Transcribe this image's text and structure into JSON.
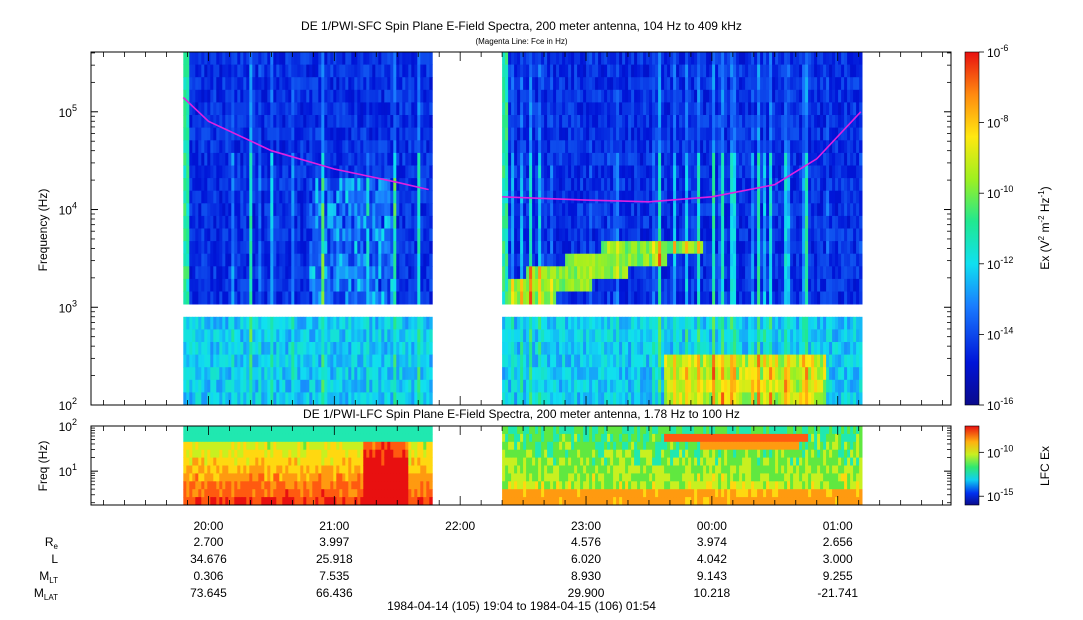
{
  "chart_data": [
    {
      "type": "heatmap",
      "title": "DE 1/PWI-SFC  Spin Plane E-Field Spectra, 200 meter antenna, 104 Hz to 409 kHz",
      "subtitle": "(Magenta Line: Fce in Hz)",
      "ylabel": "Frequency (Hz)",
      "yscale": "log",
      "ylim": [
        100,
        409000
      ],
      "yticks": [
        {
          "value": 100,
          "base": "10",
          "exp": "2"
        },
        {
          "value": 1000,
          "base": "10",
          "exp": "3"
        },
        {
          "value": 10000,
          "base": "10",
          "exp": "4"
        },
        {
          "value": 100000,
          "base": "10",
          "exp": "5"
        }
      ],
      "xlim": [
        "1984-04-14T19:04",
        "1984-04-15T01:54"
      ],
      "data_gaps": [
        {
          "from": "1984-04-14T19:04",
          "to": "1984-04-14T19:48"
        },
        {
          "from": "1984-04-14T21:46",
          "to": "1984-04-14T22:20"
        },
        {
          "from": "1984-04-15T01:11",
          "to": "1984-04-15T01:54"
        }
      ],
      "colorbar": {
        "label_parts": [
          "Ex (V",
          "2",
          " m",
          "-2",
          " Hz",
          "-1",
          ")"
        ],
        "scale": "log",
        "range": [
          1e-16,
          1e-06
        ],
        "ticks": [
          {
            "value": 1e-06,
            "base": "10",
            "exp": "-6"
          },
          {
            "value": 1e-08,
            "base": "10",
            "exp": "-8"
          },
          {
            "value": 1e-10,
            "base": "10",
            "exp": "-10"
          },
          {
            "value": 1e-12,
            "base": "10",
            "exp": "-12"
          },
          {
            "value": 1e-14,
            "base": "10",
            "exp": "-14"
          },
          {
            "value": 1e-16,
            "base": "10",
            "exp": "-16"
          }
        ]
      },
      "series": [
        {
          "name": "Fce",
          "color": "#e020e0",
          "segments": [
            [
              {
                "x": "1984-04-14T19:48",
                "y": 140000
              },
              {
                "x": "1984-04-14T20:00",
                "y": 80000
              },
              {
                "x": "1984-04-14T20:30",
                "y": 40000
              },
              {
                "x": "1984-04-14T21:00",
                "y": 26000
              },
              {
                "x": "1984-04-14T21:30",
                "y": 19000
              },
              {
                "x": "1984-04-14T21:45",
                "y": 16000
              }
            ],
            [
              {
                "x": "1984-04-14T22:20",
                "y": 13500
              },
              {
                "x": "1984-04-14T23:00",
                "y": 12500
              },
              {
                "x": "1984-04-14T23:30",
                "y": 12000
              },
              {
                "x": "1984-04-15T00:00",
                "y": 13500
              },
              {
                "x": "1984-04-15T00:30",
                "y": 18000
              },
              {
                "x": "1984-04-15T00:50",
                "y": 33000
              },
              {
                "x": "1984-04-15T01:11",
                "y": 100000
              }
            ]
          ]
        }
      ]
    },
    {
      "type": "heatmap",
      "title": "DE 1/PWI-LFC  Spin Plane E-Field Spectra, 200 meter antenna, 1.78 Hz to 100 Hz",
      "ylabel": "Freq (Hz)",
      "yscale": "log",
      "ylim": [
        1.78,
        100
      ],
      "yticks": [
        {
          "value": 10,
          "base": "10",
          "exp": "1"
        },
        {
          "value": 100,
          "base": "10",
          "exp": "2"
        }
      ],
      "xlim": [
        "1984-04-14T19:04",
        "1984-04-15T01:54"
      ],
      "colorbar": {
        "label": "LFC Ex",
        "scale": "log",
        "range": [
          1e-16,
          1e-07
        ],
        "ticks": [
          {
            "value": 1e-10,
            "base": "10",
            "exp": "-10"
          },
          {
            "value": 1e-15,
            "base": "10",
            "exp": "-15"
          }
        ]
      }
    }
  ],
  "xaxis": {
    "ticks": [
      {
        "label": "20:00",
        "t": "1984-04-14T20:00"
      },
      {
        "label": "21:00",
        "t": "1984-04-14T21:00"
      },
      {
        "label": "22:00",
        "t": "1984-04-14T22:00"
      },
      {
        "label": "23:00",
        "t": "1984-04-14T23:00"
      },
      {
        "label": "00:00",
        "t": "1984-04-15T00:00"
      },
      {
        "label": "01:00",
        "t": "1984-04-15T01:00"
      }
    ],
    "time_range_label": "1984-04-14 (105) 19:04 to 1984-04-15 (106) 01:54"
  },
  "ephemeris": {
    "rows": [
      {
        "label": "R",
        "sub": "e",
        "values": [
          "2.700",
          "3.997",
          "",
          "4.576",
          "3.974",
          "2.656"
        ]
      },
      {
        "label": "L",
        "sub": "",
        "values": [
          "34.676",
          "25.918",
          "",
          "6.020",
          "4.042",
          "3.000"
        ]
      },
      {
        "label": "M",
        "sub": "LT",
        "values": [
          "0.306",
          "7.535",
          "",
          "8.930",
          "9.143",
          "9.255"
        ]
      },
      {
        "label": "M",
        "sub": "LAT",
        "values": [
          "73.645",
          "66.436",
          "",
          "29.900",
          "10.218",
          "-21.741"
        ]
      }
    ]
  }
}
